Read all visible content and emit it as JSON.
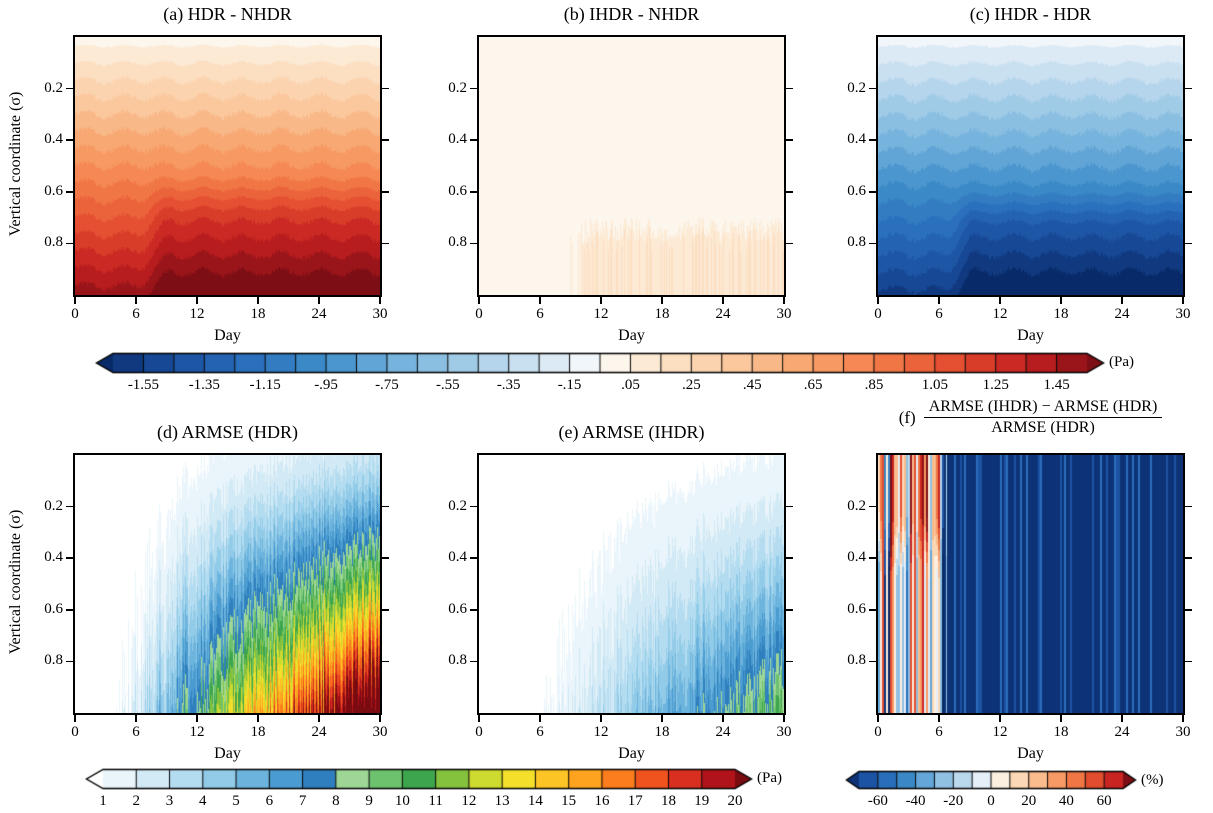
{
  "figure": {
    "x_axis_label": "Day",
    "y_axis_label": "Vertical coordinate (σ)",
    "x_tick_labels": [
      "0",
      "6",
      "12",
      "18",
      "24",
      "30"
    ],
    "x_tick_values": [
      0,
      6,
      12,
      18,
      24,
      30
    ],
    "y_tick_labels": [
      "0.2",
      "0.4",
      "0.6",
      "0.8"
    ],
    "y_tick_values": [
      0.2,
      0.4,
      0.6,
      0.8
    ],
    "panels": [
      {
        "id": "a",
        "title": "(a) HDR - NHDR"
      },
      {
        "id": "b",
        "title": "(b) IHDR - NHDR"
      },
      {
        "id": "c",
        "title": "(c) IHDR - HDR"
      },
      {
        "id": "d",
        "title": "(d) ARMSE (HDR)"
      },
      {
        "id": "e",
        "title": "(e) ARMSE (IHDR)"
      },
      {
        "id": "f",
        "title_prefix": "(f)",
        "title_numerator": "ARMSE (IHDR) − ARMSE (HDR)",
        "title_denominator": "ARMSE (HDR)"
      }
    ],
    "colorbars": {
      "diff": {
        "unit": "(Pa)",
        "style": "diverging blue-white-red, arrow ends, 0.1 Pa boxes",
        "vmin": -1.65,
        "vmax": 1.55,
        "segment_step": 0.1,
        "tick_labels": [
          "-1.55",
          "-1.35",
          "-1.15",
          "-.95",
          "-.75",
          "-.55",
          "-.35",
          "-.15",
          ".05",
          ".25",
          ".45",
          ".65",
          ".85",
          "1.05",
          "1.25",
          "1.45"
        ],
        "tick_values": [
          -1.55,
          -1.35,
          -1.15,
          -0.95,
          -0.75,
          -0.55,
          -0.35,
          -0.15,
          0.05,
          0.25,
          0.45,
          0.65,
          0.85,
          1.05,
          1.25,
          1.45
        ]
      },
      "armse": {
        "unit": "(Pa)",
        "style": "white-blue-green-yellow-red, arrow ends, 1 Pa boxes",
        "vmin": 1,
        "vmax": 20,
        "segment_step": 1,
        "tick_labels": [
          "1",
          "2",
          "3",
          "4",
          "5",
          "6",
          "7",
          "8",
          "9",
          "10",
          "11",
          "12",
          "13",
          "14",
          "15",
          "16",
          "17",
          "18",
          "19",
          "20"
        ],
        "tick_values": [
          1,
          2,
          3,
          4,
          5,
          6,
          7,
          8,
          9,
          10,
          11,
          12,
          13,
          14,
          15,
          16,
          17,
          18,
          19,
          20
        ]
      },
      "pct": {
        "unit": "(%)",
        "style": "diverging blue-white-red, arrow ends, 10% boxes",
        "vmin": -70,
        "vmax": 70,
        "segment_step": 10,
        "tick_labels": [
          "-60",
          "-40",
          "-20",
          "0",
          "20",
          "40",
          "60"
        ],
        "tick_values": [
          -60,
          -40,
          -20,
          0,
          20,
          40,
          60
        ]
      }
    },
    "palette": {
      "diverging_stops": [
        [
          -1.0,
          "#082a68"
        ],
        [
          -0.85,
          "#1b4fa0"
        ],
        [
          -0.7,
          "#2a6fbc"
        ],
        [
          -0.55,
          "#3f8ec9"
        ],
        [
          -0.4,
          "#74b2dd"
        ],
        [
          -0.25,
          "#a8cfe9"
        ],
        [
          -0.12,
          "#d3e5f3"
        ],
        [
          -0.04,
          "#edf4fa"
        ],
        [
          0.0,
          "#fcfbf9"
        ],
        [
          0.04,
          "#fdf4e8"
        ],
        [
          0.12,
          "#fce4ca"
        ],
        [
          0.25,
          "#fbcda4"
        ],
        [
          0.4,
          "#f8a871"
        ],
        [
          0.55,
          "#f47e4b"
        ],
        [
          0.7,
          "#e44f30"
        ],
        [
          0.85,
          "#c41f20"
        ],
        [
          1.0,
          "#7e0e15"
        ]
      ],
      "rainbow_colors": [
        "#ffffff",
        "#e9f5fb",
        "#d2eaf6",
        "#b4dcf0",
        "#92cbe8",
        "#6cb4dd",
        "#4a9bd0",
        "#2f7fbe",
        "#9ed696",
        "#6cc26d",
        "#3ca54d",
        "#84c13d",
        "#cdda2f",
        "#f4e02b",
        "#fdc425",
        "#fda320",
        "#fb7d1d",
        "#f1531f",
        "#d92f20",
        "#b0141a",
        "#7a0b10"
      ]
    }
  },
  "chart_data": [
    {
      "panel": "a",
      "type": "contour",
      "title": "(a) HDR - NHDR",
      "xlabel": "Day",
      "ylabel": "Vertical coordinate (σ)",
      "x_range": [
        0,
        30
      ],
      "y_range": [
        0,
        1
      ],
      "y_axis_inverted": true,
      "units": "Pa",
      "colorbar": "diff",
      "contour_interval": 0.1,
      "value_range": [
        0.05,
        1.55
      ],
      "pattern": "Positive difference everywhere, increasing monotonically with σ: <0.25 Pa near σ≈0, ≈0.8 Pa at σ≈0.5, >1.45 Pa below σ≈0.9; deep-layer (σ>0.6) values strengthen slightly after ~day 8.",
      "model": {
        "top": 0.05,
        "bottom": 1.55,
        "bump_amp": 0.18,
        "bump_day": [
          6,
          9.5
        ],
        "bump_sigma": [
          0.5,
          0.72
        ],
        "wiggle": 0.02
      }
    },
    {
      "panel": "b",
      "type": "contour",
      "title": "(b) IHDR - NHDR",
      "xlabel": "Day",
      "ylabel": "Vertical coordinate (σ)",
      "x_range": [
        0,
        30
      ],
      "y_range": [
        0,
        1
      ],
      "y_axis_inverted": true,
      "units": "Pa",
      "colorbar": "diff",
      "contour_interval": 0.1,
      "value_range": [
        0,
        0.25
      ],
      "pattern": "Near zero everywhere (white); weak positive band of 0.05–0.25 Pa confined below σ≈0.72 appearing after ~day 9 with jagged upper edge.",
      "model": {
        "background": 0.02,
        "patch_amp": 0.17,
        "day_on": [
          8.5,
          11
        ],
        "sigma_on": [
          0.7,
          0.8
        ]
      }
    },
    {
      "panel": "c",
      "type": "contour",
      "title": "(c) IHDR - HDR",
      "xlabel": "Day",
      "ylabel": "Vertical coordinate (σ)",
      "x_range": [
        0,
        30
      ],
      "y_range": [
        0,
        1
      ],
      "y_axis_inverted": true,
      "units": "Pa",
      "colorbar": "diff",
      "contour_interval": 0.1,
      "value_range": [
        -1.55,
        -0.05
      ],
      "pattern": "Mirror image of panel (a) with opposite sign: negative difference growing in magnitude with σ; below −1.45 Pa near the bottom; deep values strengthen after ~day 8.",
      "model": {
        "top": -0.05,
        "bottom": -1.53,
        "bump_amp": -0.2,
        "bump_day": [
          6.5,
          9.5
        ],
        "bump_sigma": [
          0.55,
          0.75
        ],
        "wiggle": 0.02
      }
    },
    {
      "panel": "d",
      "type": "contour",
      "title": "(d) ARMSE (HDR)",
      "xlabel": "Day",
      "ylabel": "Vertical coordinate (σ)",
      "x_range": [
        0,
        30
      ],
      "y_range": [
        0,
        1
      ],
      "y_axis_inverted": true,
      "units": "Pa",
      "colorbar": "armse",
      "contour_interval": 1,
      "value_range": [
        0,
        21
      ],
      "pattern": "ARMSE ~0 (white) before ~day 4 at depth and ~day 7 near surface; grows with forecast day and depth: 4–6 Pa near surface, 12–14 Pa at mid-depth, >20 Pa near σ≈1 by days 25–30; strong day-to-day jaggedness.",
      "model": {
        "onset_base": 4,
        "onset_shear": 2.5,
        "growth_days": 24,
        "growth_pow": 0.9,
        "amp_base": 3,
        "amp_scale": 20,
        "amp_pow": 1.25,
        "noise": 0.18
      }
    },
    {
      "panel": "e",
      "type": "contour",
      "title": "(e) ARMSE (IHDR)",
      "xlabel": "Day",
      "ylabel": "Vertical coordinate (σ)",
      "x_range": [
        0,
        30
      ],
      "y_range": [
        0,
        1
      ],
      "y_axis_inverted": true,
      "units": "Pa",
      "colorbar": "armse",
      "contour_interval": 1,
      "value_range": [
        0,
        10
      ],
      "pattern": "Same fan shape as (d) but much weaker: mostly 1–6 Pa (light blues), reaching 8–10 Pa (green) only near the bottom at days 25–30.",
      "model": {
        "onset_base": 5,
        "onset_shear": 3,
        "growth_days": 24,
        "growth_pow": 0.9,
        "amp_base": 1.2,
        "amp_scale": 8.5,
        "amp_pow": 1.25,
        "noise": 0.18
      }
    },
    {
      "panel": "f",
      "type": "contour",
      "title": "(f) [ARMSE(IHDR) − ARMSE(HDR)] / ARMSE(HDR)",
      "xlabel": "Day",
      "ylabel": "Vertical coordinate (σ)",
      "x_range": [
        0,
        30
      ],
      "y_range": [
        0,
        1
      ],
      "y_axis_inverted": true,
      "units": "%",
      "colorbar": "pct",
      "contour_interval": 10,
      "value_range": [
        -75,
        75
      ],
      "pattern": "Noisy full-height vertical stripes of ±20–70% during days 0–6 (reds mostly in upper levels, blues throughout); after ~day 7 uniformly below −60% (dark blue) at all levels with faint vertical striping.",
      "model": {
        "cut_day": 6.5,
        "late_base": -72,
        "late_stripe": 22,
        "early_amp": 90,
        "early_red_amp": 55
      }
    }
  ]
}
